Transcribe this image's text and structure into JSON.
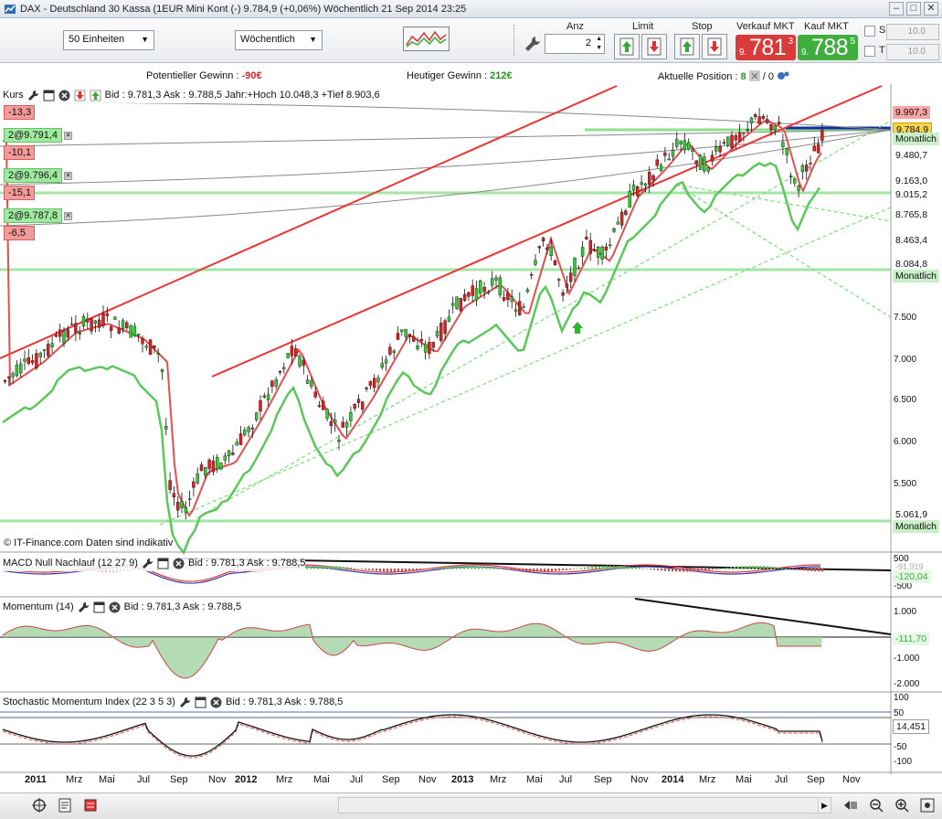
{
  "window": {
    "title": "DAX - Deutschland 30 Kassa (1EUR Mini Kont (-)    9.784,9 (+0,06%)    Wöchentlich  21 Sep 2014 23:25"
  },
  "toolbar": {
    "units_select": "50 Einheiten",
    "interval_select": "Wöchentlich",
    "anz_label": "Anz",
    "anz_value": "2",
    "limit_label": "Limit",
    "stop_label": "Stop",
    "sell_label": "Verkauf MKT",
    "buy_label": "Kauf MKT",
    "sell_small": "9.",
    "sell_big": "781",
    "sell_sup": "3",
    "buy_small": "9.",
    "buy_big": "788",
    "buy_sup": "5",
    "s_label": "S",
    "t_label": "T",
    "s_value": "10.0",
    "t_value": "10.0"
  },
  "info": {
    "pot_label": "Potentieller Gewinn : ",
    "pot_value": "-90€",
    "today_label": "Heutiger Gewinn : ",
    "today_value": "212€",
    "pos_label": "Aktuelle Position : ",
    "pos_value": "8",
    "pos_slash": "/ 0"
  },
  "main_panel": {
    "name": "Kurs",
    "quote": "Bid : 9.781,3 Ask : 9.788,5 Jahr:+Hoch 10.048,3 +Tief 8.903,6",
    "copyright": "© IT-Finance.com  Daten sind indikativ",
    "orders": [
      {
        "text": "-13,3",
        "type": "loss"
      },
      {
        "text": "2@9.791,4",
        "type": "pos"
      },
      {
        "text": "-10,1",
        "type": "loss"
      },
      {
        "text": "2@9.796,4",
        "type": "pos"
      },
      {
        "text": "-15,1",
        "type": "loss"
      },
      {
        "text": "2@9.787,8",
        "type": "pos"
      },
      {
        "text": "-6,5",
        "type": "loss"
      }
    ],
    "price_tags": [
      {
        "text": "9.997,3",
        "bg": "#f7a4a4"
      },
      {
        "text": "9.784,9",
        "bg": "#f5d34a"
      },
      {
        "text": "Monatlich",
        "bg": "#c9f0c9"
      },
      {
        "text": "9.480,7",
        "bg": "#ffffff"
      },
      {
        "text": "9.163,0",
        "bg": "#ffffff"
      },
      {
        "text": "9.015,2",
        "bg": "#ffffff"
      },
      {
        "text": "8.765,8",
        "bg": "#ffffff"
      },
      {
        "text": "8.463,4",
        "bg": "#ffffff"
      },
      {
        "text": "8.084,8",
        "bg": "#ffffff"
      },
      {
        "text": "Monatlich",
        "bg": "#c9f0c9"
      },
      {
        "text": "5.061,9",
        "bg": "#ffffff"
      },
      {
        "text": "Monatlich",
        "bg": "#c9f0c9"
      }
    ],
    "y_axis": [
      "7.500",
      "7.000",
      "6.500",
      "6.000",
      "5.500"
    ]
  },
  "macd_panel": {
    "name": "MACD Null Nachlauf (12 27 9)",
    "quote": "Bid : 9.781,3 Ask : 9.788,5",
    "y_axis": [
      "500",
      "-500"
    ],
    "value": "-120,04",
    "value2": "-91,919"
  },
  "momentum_panel": {
    "name": "Momentum (14)",
    "quote": "Bid : 9.781,3 Ask : 9.788,5",
    "y_axis": [
      "1.000",
      "-1.000",
      "-2.000"
    ],
    "value": "-111,70"
  },
  "stoch_panel": {
    "name": "Stochastic Momentum Index (22 3 5 3)",
    "quote": "Bid : 9.781,3 Ask : 9.788,5",
    "y_axis": [
      "100",
      "50",
      "-50",
      "-100"
    ],
    "value": "14,451"
  },
  "x_axis": [
    "2011",
    "Mrz",
    "Mai",
    "Jul",
    "Sep",
    "Nov",
    "2012",
    "Mrz",
    "Mai",
    "Jul",
    "Sep",
    "Nov",
    "2013",
    "Mrz",
    "Mai",
    "Jul",
    "Sep",
    "Nov",
    "2014",
    "Mrz",
    "Mai",
    "Jul",
    "Sep",
    "Nov"
  ],
  "colors": {
    "up": "#33cc33",
    "down": "#e02020",
    "sell": "#d93a3a",
    "buy": "#3fae3f"
  }
}
